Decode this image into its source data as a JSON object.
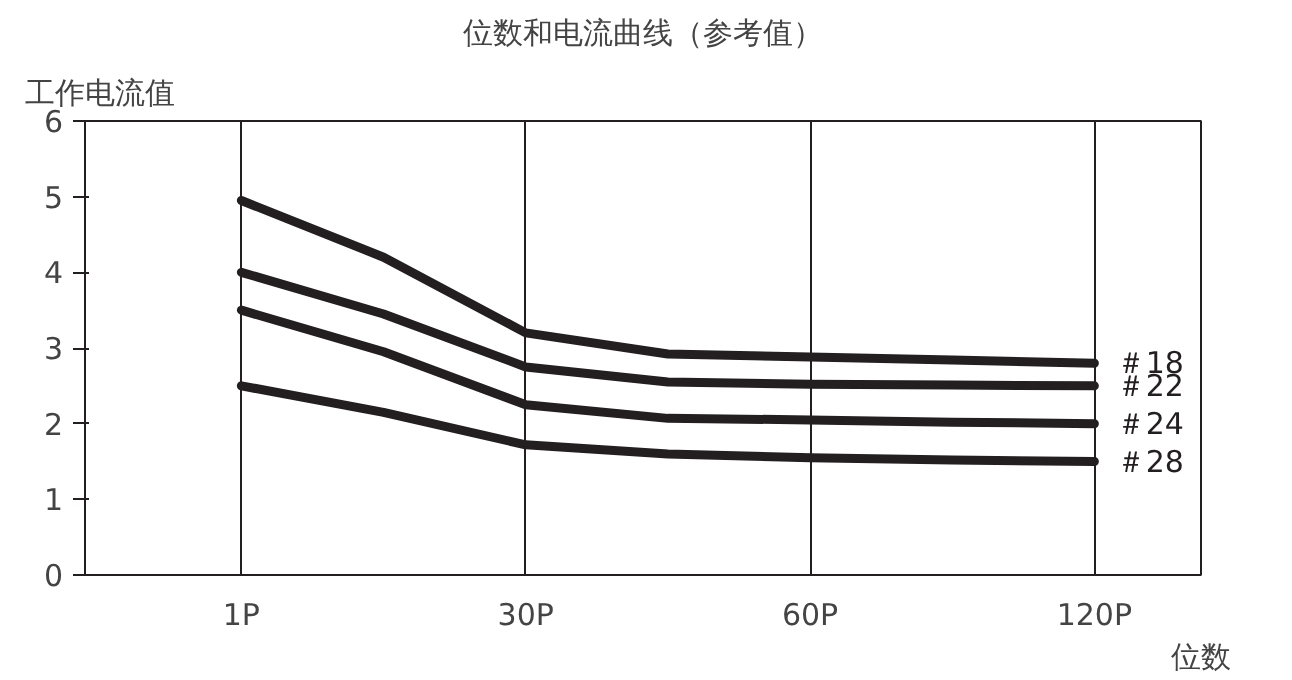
{
  "chart_data": {
    "type": "line",
    "title": "位数和电流曲线（参考值）",
    "xlabel": "位数",
    "ylabel": "工作电流值",
    "categories": [
      "1P",
      null,
      "30P",
      null,
      "60P",
      null,
      "120P"
    ],
    "ylim": [
      0,
      6
    ],
    "yticks": [
      0,
      1,
      2,
      3,
      4,
      5,
      6
    ],
    "grid": "x",
    "line_style": "solid",
    "marker": "none",
    "series": [
      {
        "name": "＃18",
        "color": "#231f20",
        "values": [
          4.95,
          4.2,
          3.2,
          2.92,
          2.88,
          2.84,
          2.8
        ]
      },
      {
        "name": "＃22",
        "color": "#231f20",
        "values": [
          4.0,
          3.45,
          2.75,
          2.55,
          2.52,
          2.51,
          2.5
        ]
      },
      {
        "name": "＃24",
        "color": "#231f20",
        "values": [
          3.5,
          2.95,
          2.25,
          2.07,
          2.05,
          2.02,
          2.0
        ]
      },
      {
        "name": "＃28",
        "color": "#231f20",
        "values": [
          2.5,
          2.15,
          1.72,
          1.6,
          1.55,
          1.52,
          1.5
        ]
      }
    ]
  }
}
